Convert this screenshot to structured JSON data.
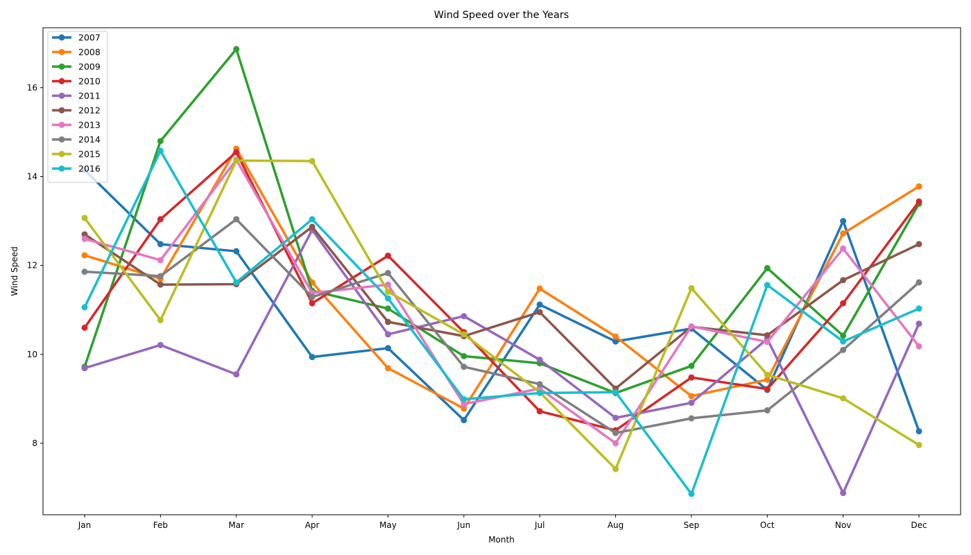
{
  "chart_data": {
    "type": "line",
    "title": "Wind Speed over the Years",
    "xlabel": "Month",
    "ylabel": "Wind Speed",
    "categories": [
      "Jan",
      "Feb",
      "Mar",
      "Apr",
      "May",
      "Jun",
      "Jul",
      "Aug",
      "Sep",
      "Oct",
      "Nov",
      "Dec"
    ],
    "ylim": [
      6.39,
      17.35
    ],
    "yticks": [
      8,
      10,
      12,
      14,
      16
    ],
    "ytick_labels": [
      "8",
      "10",
      "12",
      "14",
      "16"
    ],
    "grid": false,
    "legend_position": "top-left",
    "series": [
      {
        "name": "2007",
        "color": "#1f77b4",
        "values": [
          14.15,
          12.48,
          12.32,
          9.94,
          10.14,
          8.52,
          11.12,
          10.29,
          10.58,
          9.2,
          13.0,
          8.27
        ]
      },
      {
        "name": "2008",
        "color": "#ff7f0e",
        "values": [
          12.23,
          11.7,
          14.63,
          11.62,
          9.69,
          8.78,
          11.48,
          10.4,
          9.06,
          9.43,
          12.72,
          13.78
        ]
      },
      {
        "name": "2009",
        "color": "#2ca02c",
        "values": [
          9.72,
          14.8,
          16.87,
          11.43,
          11.03,
          9.96,
          9.8,
          9.13,
          9.74,
          11.94,
          10.42,
          13.39
        ]
      },
      {
        "name": "2010",
        "color": "#d62728",
        "values": [
          10.6,
          13.04,
          14.55,
          11.15,
          12.22,
          10.5,
          8.72,
          8.29,
          9.48,
          9.22,
          11.15,
          13.44
        ]
      },
      {
        "name": "2011",
        "color": "#9467bd",
        "values": [
          9.69,
          10.21,
          9.55,
          12.8,
          10.45,
          10.86,
          9.88,
          8.57,
          8.91,
          10.35,
          6.88,
          10.69
        ]
      },
      {
        "name": "2012",
        "color": "#8c564b",
        "values": [
          12.7,
          11.57,
          11.58,
          12.87,
          10.73,
          10.41,
          10.95,
          9.23,
          10.62,
          10.43,
          11.67,
          12.48
        ]
      },
      {
        "name": "2013",
        "color": "#e377c2",
        "values": [
          12.6,
          12.12,
          14.38,
          11.38,
          11.57,
          8.88,
          9.23,
          8.0,
          10.63,
          10.28,
          12.38,
          10.18
        ]
      },
      {
        "name": "2014",
        "color": "#7f7f7f",
        "values": [
          11.86,
          11.76,
          13.04,
          11.29,
          11.83,
          9.72,
          9.33,
          8.23,
          8.56,
          8.74,
          10.1,
          11.62
        ]
      },
      {
        "name": "2015",
        "color": "#bcbd22",
        "values": [
          13.07,
          10.77,
          14.36,
          14.35,
          11.41,
          10.45,
          9.15,
          7.42,
          11.49,
          9.54,
          9.01,
          7.96
        ]
      },
      {
        "name": "2016",
        "color": "#17becf",
        "values": [
          11.06,
          14.58,
          11.62,
          13.04,
          11.26,
          8.99,
          9.13,
          9.15,
          6.86,
          11.56,
          10.29,
          11.03
        ]
      }
    ]
  }
}
